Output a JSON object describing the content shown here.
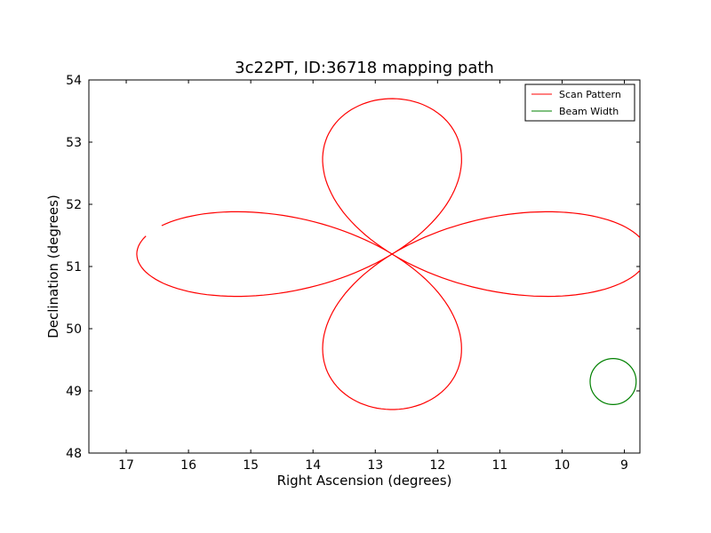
{
  "chart_data": {
    "type": "line",
    "title": "3c22PT, ID:36718 mapping path",
    "xlabel": "Right Ascension (degrees)",
    "ylabel": "Declination (degrees)",
    "xlim": [
      17.6,
      8.75
    ],
    "ylim": [
      48,
      54
    ],
    "x_ticks": [
      "17",
      "16",
      "15",
      "14",
      "13",
      "12",
      "11",
      "10",
      "9"
    ],
    "y_ticks": [
      "48",
      "49",
      "50",
      "51",
      "52",
      "53",
      "54"
    ],
    "grid": false,
    "legend_position": "top-right",
    "legend": [
      {
        "name": "Scan Pattern",
        "color": "#ff0000"
      },
      {
        "name": "Beam Width",
        "color": "#008000"
      }
    ],
    "series": [
      {
        "name": "Scan Pattern",
        "color": "#ff0000",
        "shape": "four-petal rose scan centered on the source",
        "center": [
          12.73,
          51.2
        ],
        "ra_half_extent": 4.1,
        "dec_half_extent": 2.5,
        "x": [
          12.73,
          13.3,
          14.5,
          15.8,
          16.7,
          16.82,
          16.3,
          15.4,
          14.2,
          13.2,
          12.73,
          13.3,
          13.8,
          13.8,
          13.2,
          12.73,
          12.2,
          11.65,
          11.65,
          12.2,
          12.73,
          12.1,
          10.95,
          9.6,
          8.78,
          8.85,
          9.7,
          11.0,
          12.2,
          12.73,
          12.2,
          11.65,
          11.65,
          12.2,
          12.73,
          13.2,
          13.8,
          13.8,
          13.3,
          12.73,
          13.3,
          14.5,
          15.8,
          16.65,
          16.72
        ],
        "y": [
          51.2,
          51.55,
          51.85,
          51.85,
          51.45,
          50.95,
          50.6,
          50.55,
          50.75,
          51.0,
          51.2,
          51.8,
          52.5,
          53.1,
          53.6,
          53.7,
          53.6,
          53.1,
          52.5,
          51.8,
          51.2,
          51.6,
          51.88,
          51.8,
          51.2,
          50.9,
          50.55,
          50.55,
          50.95,
          51.2,
          50.6,
          49.9,
          49.3,
          48.85,
          48.7,
          48.85,
          49.3,
          49.9,
          50.6,
          51.2,
          50.9,
          50.7,
          50.6,
          50.9,
          51.08
        ]
      },
      {
        "name": "Beam Width",
        "color": "#008000",
        "shape": "circle",
        "center": [
          9.18,
          49.15
        ],
        "radius_dec": 0.37
      }
    ]
  }
}
